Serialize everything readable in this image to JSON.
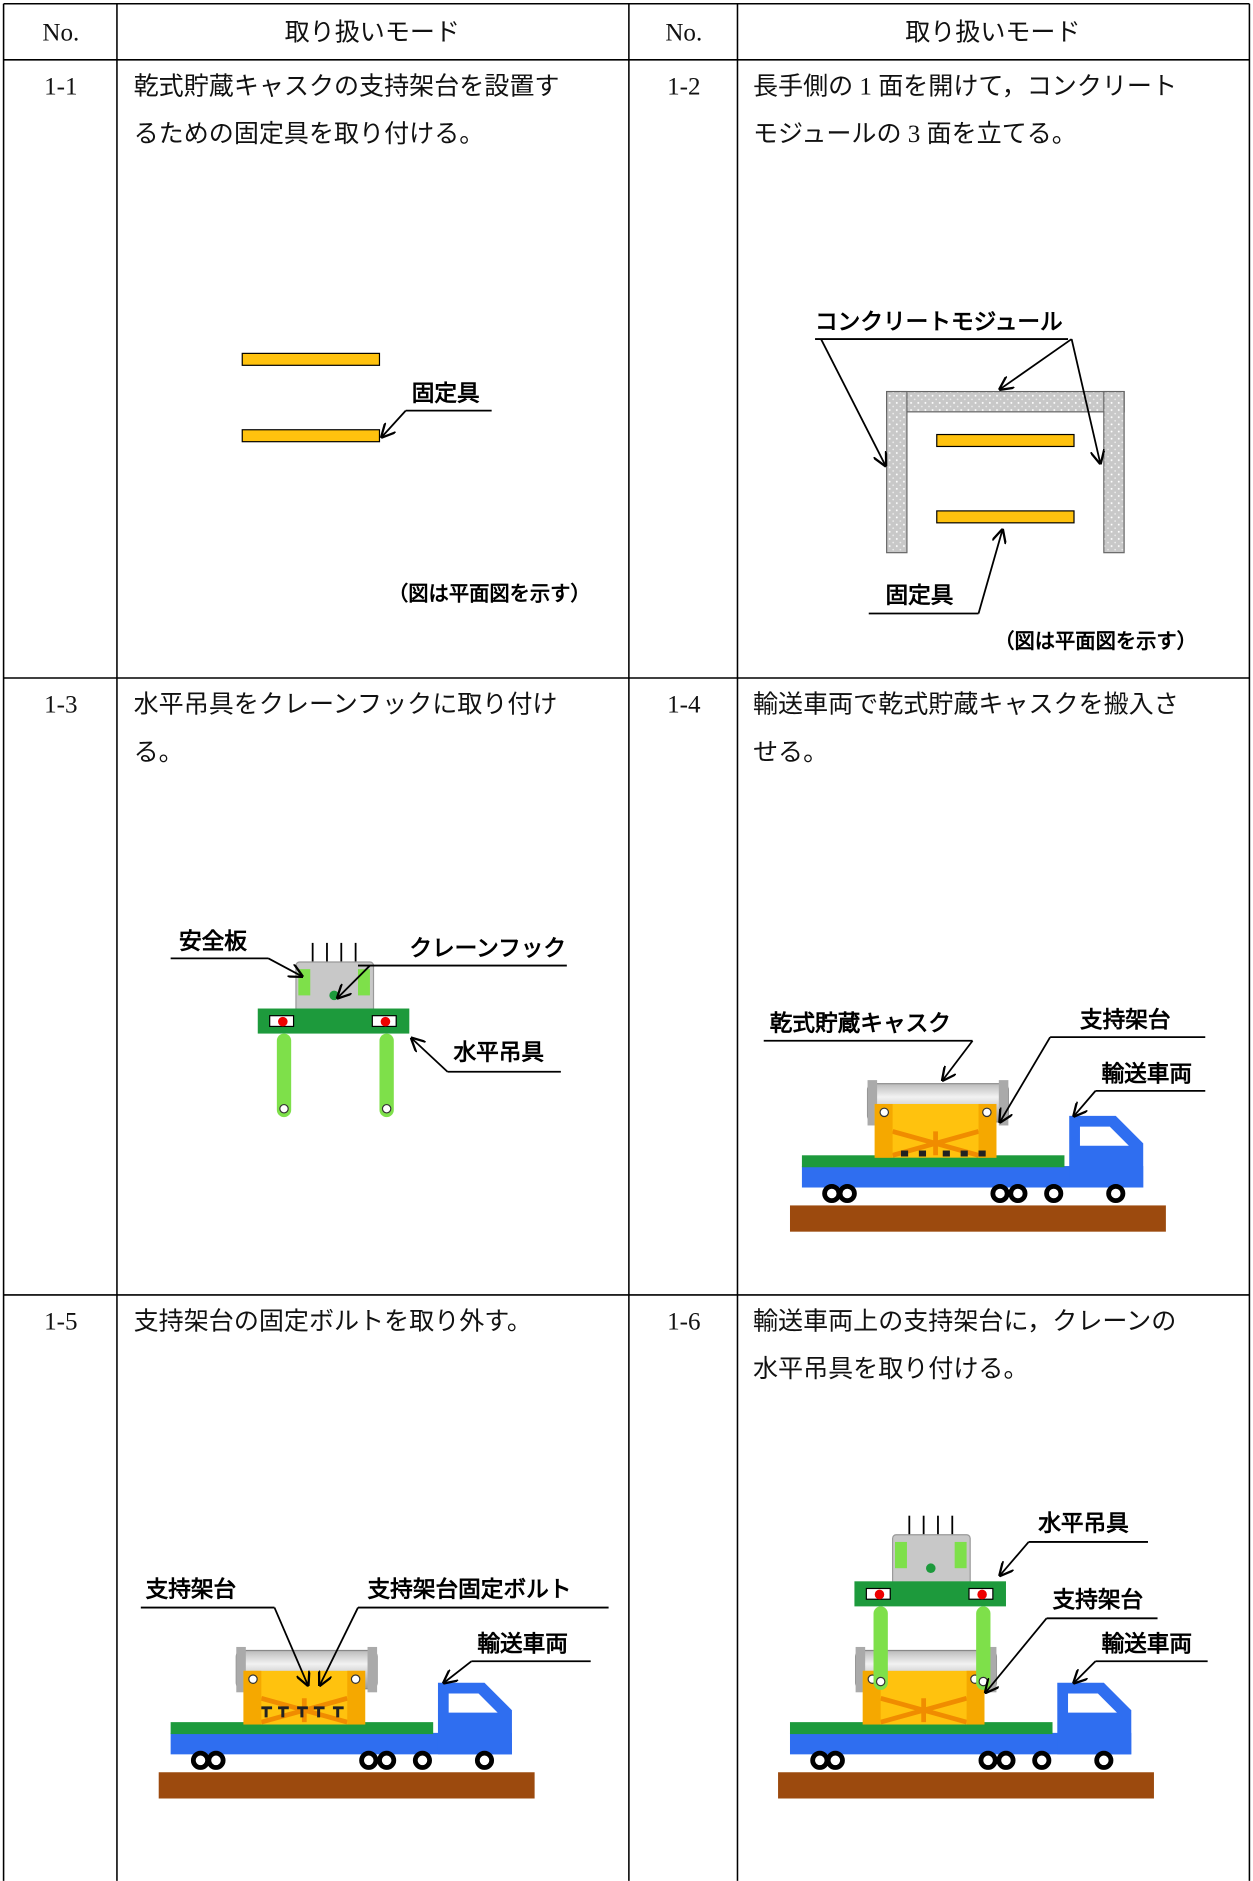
{
  "table": {
    "header": [
      "No.",
      "取り扱いモード",
      "No.",
      "取り扱いモード"
    ],
    "cells": [
      {
        "no": "1-1",
        "text": [
          "乾式貯蔵キャスクの支持架台を設置す",
          "るための固定具を取り付ける。"
        ],
        "labels": [
          "固定具"
        ],
        "note": "（図は平面図を示す）"
      },
      {
        "no": "1-2",
        "text": [
          "長手側の 1 面を開けて，コンクリート",
          "モジュールの 3 面を立てる。"
        ],
        "labels": [
          "コンクリートモジュール",
          "固定具"
        ],
        "note": "（図は平面図を示す）"
      },
      {
        "no": "1-3",
        "text": [
          "水平吊具をクレーンフックに取り付け",
          "る。"
        ],
        "labels": [
          "安全板",
          "クレーンフック",
          "水平吊具"
        ]
      },
      {
        "no": "1-4",
        "text": [
          "輸送車両で乾式貯蔵キャスクを搬入さ",
          "せる。"
        ],
        "labels": [
          "乾式貯蔵キャスク",
          "支持架台",
          "輸送車両"
        ]
      },
      {
        "no": "1-5",
        "text": [
          "支持架台の固定ボルトを取り外す。"
        ],
        "labels": [
          "支持架台",
          "支持架台固定ボルト",
          "輸送車両"
        ]
      },
      {
        "no": "1-6",
        "text": [
          "輸送車両上の支持架台に，クレーンの",
          "水平吊具を取り付ける。"
        ],
        "labels": [
          "水平吊具",
          "支持架台",
          "輸送車両"
        ]
      }
    ]
  }
}
